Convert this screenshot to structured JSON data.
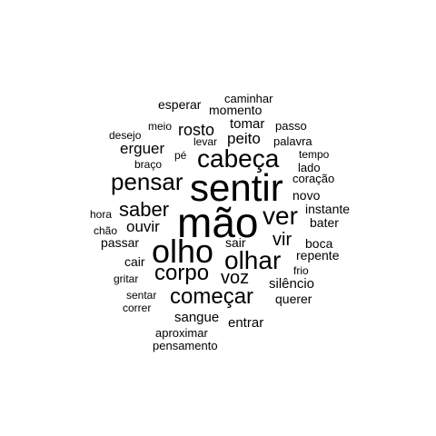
{
  "colors": {
    "background": "#ffffff",
    "text": "#000000"
  },
  "words": [
    {
      "id": "mao",
      "text": "mão",
      "weight": 10
    },
    {
      "id": "sentir",
      "text": "sentir",
      "weight": 9
    },
    {
      "id": "olho",
      "text": "olho",
      "weight": 8
    },
    {
      "id": "cabeca",
      "text": "cabeça",
      "weight": 7
    },
    {
      "id": "olhar",
      "text": "olhar",
      "weight": 7
    },
    {
      "id": "ver",
      "text": "ver",
      "weight": 7
    },
    {
      "id": "pensar",
      "text": "pensar",
      "weight": 6
    },
    {
      "id": "comecar",
      "text": "começar",
      "weight": 6
    },
    {
      "id": "corpo",
      "text": "corpo",
      "weight": 6
    },
    {
      "id": "saber",
      "text": "saber",
      "weight": 5
    },
    {
      "id": "voz",
      "text": "voz",
      "weight": 5
    },
    {
      "id": "vir",
      "text": "vir",
      "weight": 5
    },
    {
      "id": "rosto",
      "text": "rosto",
      "weight": 4
    },
    {
      "id": "peito",
      "text": "peito",
      "weight": 4
    },
    {
      "id": "erguer",
      "text": "erguer",
      "weight": 4
    },
    {
      "id": "ouvir",
      "text": "ouvir",
      "weight": 4
    },
    {
      "id": "tomar",
      "text": "tomar",
      "weight": 3
    },
    {
      "id": "silencio",
      "text": "silêncio",
      "weight": 3
    },
    {
      "id": "sangue",
      "text": "sangue",
      "weight": 3
    },
    {
      "id": "entrar",
      "text": "entrar",
      "weight": 3
    },
    {
      "id": "passar",
      "text": "passar",
      "weight": 3
    },
    {
      "id": "instante",
      "text": "instante",
      "weight": 3
    },
    {
      "id": "bater",
      "text": "bater",
      "weight": 3
    },
    {
      "id": "boca",
      "text": "boca",
      "weight": 3
    },
    {
      "id": "repente",
      "text": "repente",
      "weight": 3
    },
    {
      "id": "novo",
      "text": "novo",
      "weight": 3
    },
    {
      "id": "esperar",
      "text": "esperar",
      "weight": 3
    },
    {
      "id": "momento",
      "text": "momento",
      "weight": 3
    },
    {
      "id": "cair",
      "text": "cair",
      "weight": 3
    },
    {
      "id": "sair",
      "text": "sair",
      "weight": 3
    },
    {
      "id": "querer",
      "text": "querer",
      "weight": 3
    },
    {
      "id": "palavra",
      "text": "palavra",
      "weight": 2
    },
    {
      "id": "passo",
      "text": "passo",
      "weight": 2
    },
    {
      "id": "caminhar",
      "text": "caminhar",
      "weight": 2
    },
    {
      "id": "coracao",
      "text": "coração",
      "weight": 2
    },
    {
      "id": "lado",
      "text": "lado",
      "weight": 2
    },
    {
      "id": "tempo",
      "text": "tempo",
      "weight": 2
    },
    {
      "id": "braco",
      "text": "braço",
      "weight": 2
    },
    {
      "id": "desejo",
      "text": "desejo",
      "weight": 2
    },
    {
      "id": "meio",
      "text": "meio",
      "weight": 2
    },
    {
      "id": "levar",
      "text": "levar",
      "weight": 2
    },
    {
      "id": "pe",
      "text": "pé",
      "weight": 2
    },
    {
      "id": "hora",
      "text": "hora",
      "weight": 2
    },
    {
      "id": "chao",
      "text": "chão",
      "weight": 2
    },
    {
      "id": "gritar",
      "text": "gritar",
      "weight": 2
    },
    {
      "id": "sentar",
      "text": "sentar",
      "weight": 2
    },
    {
      "id": "correr",
      "text": "correr",
      "weight": 2
    },
    {
      "id": "frio",
      "text": "frio",
      "weight": 2
    },
    {
      "id": "aproximar",
      "text": "aproximar",
      "weight": 2
    },
    {
      "id": "pensamento",
      "text": "pensamento",
      "weight": 2
    }
  ]
}
